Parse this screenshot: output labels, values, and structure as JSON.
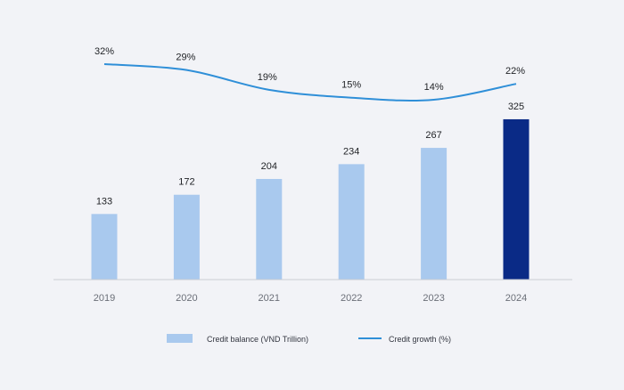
{
  "chart_data": {
    "type": "bar",
    "categories": [
      "2019",
      "2020",
      "2021",
      "2022",
      "2023",
      "2024"
    ],
    "series": [
      {
        "name": "Credit balance (VND Trillion)",
        "type": "bar",
        "values": [
          133,
          172,
          204,
          234,
          267,
          325
        ],
        "color": "#a9c9ee",
        "highlight_index": 5,
        "highlight_color": "#0a2a86"
      },
      {
        "name": "Credit growth (%)",
        "type": "line",
        "values": [
          32,
          29,
          19,
          15,
          14,
          22
        ],
        "labels": [
          "32%",
          "29%",
          "19%",
          "15%",
          "14%",
          "22%"
        ],
        "color": "#2f8fd8"
      }
    ],
    "title": "",
    "xlabel": "",
    "ylabel": "",
    "legend_position": "bottom-center",
    "grid": false
  }
}
